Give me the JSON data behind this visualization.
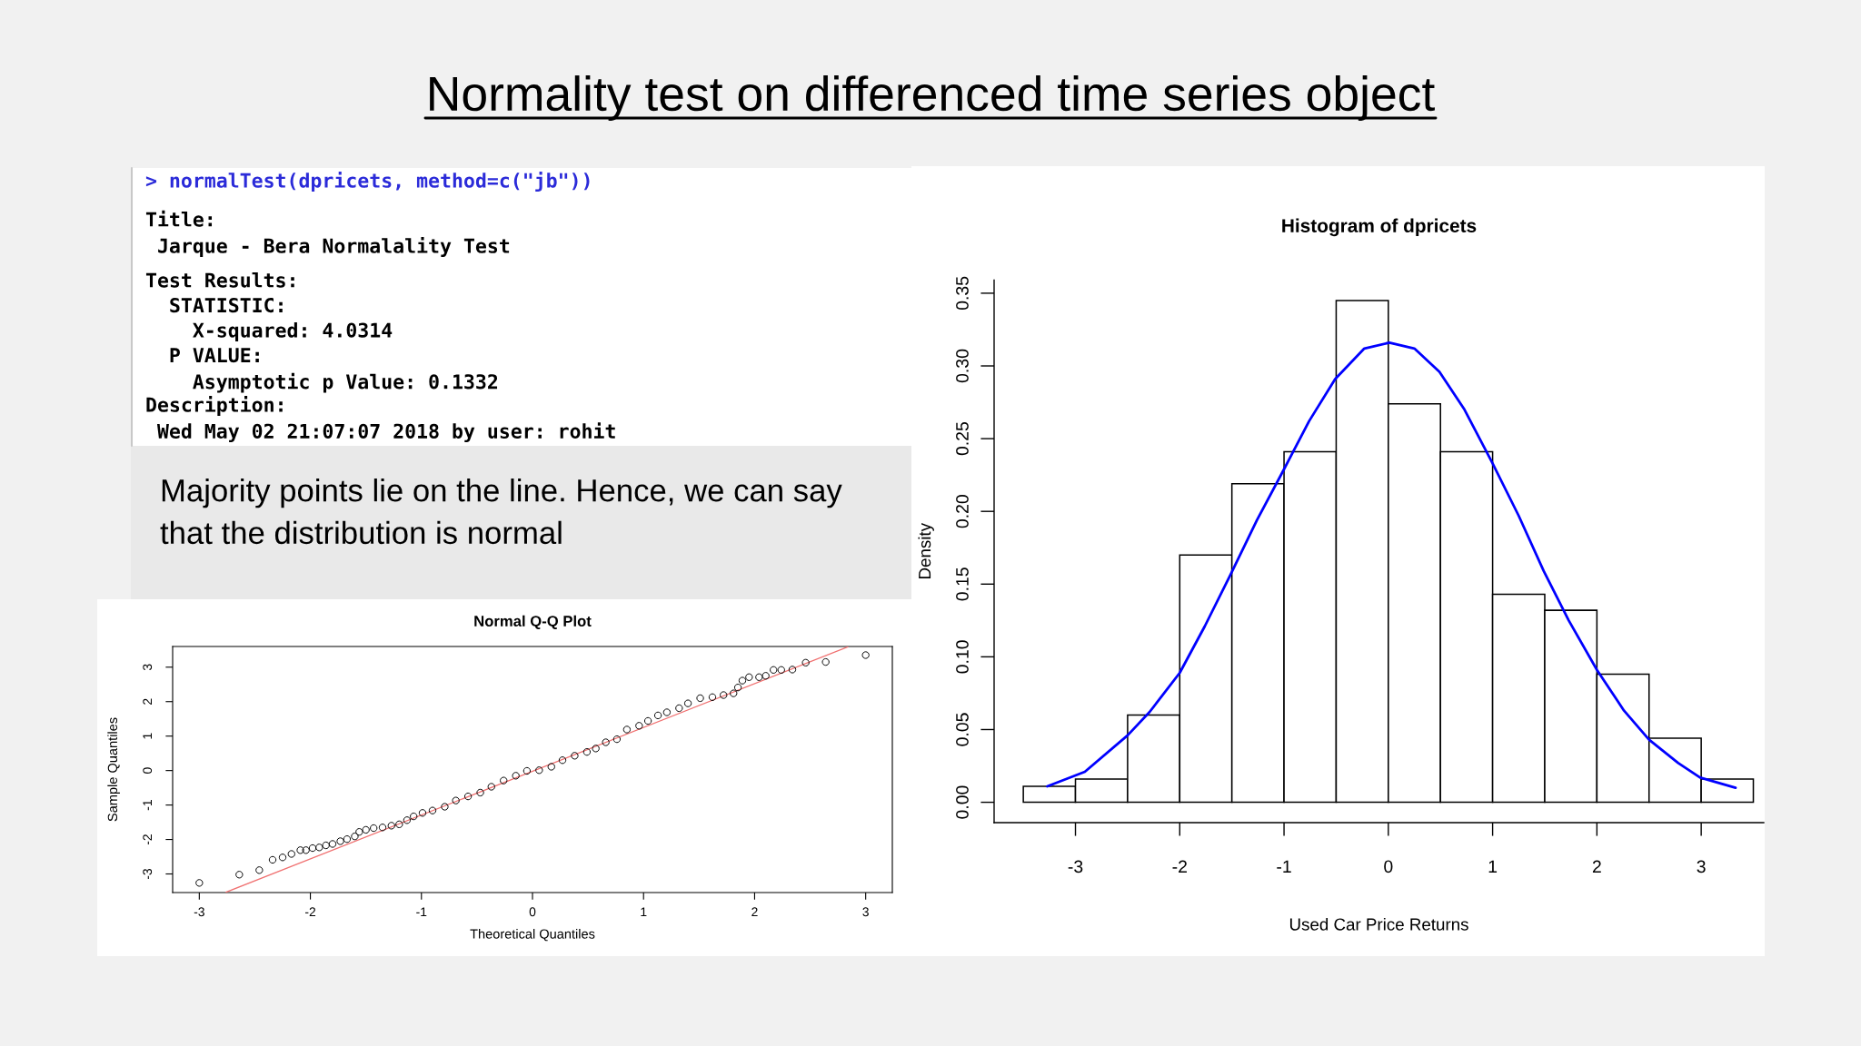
{
  "chart_data": [
    {
      "type": "other",
      "title": "Normality test on differenced time series object",
      "annotations": [
        "> normalTest(dpricets, method=c(\"jb\"))",
        "Title:\n Jarque - Bera Normalality Test",
        "Test Results:\n  STATISTIC:\n    X-squared: 4.0314\n  P VALUE:\n    Asymptotic p Value: 0.1332",
        "Description:\n Wed May 02 21:07:07 2018 by user: rohit"
      ]
    },
    {
      "type": "other",
      "annotations": [
        "Majority points lie on the line. Hence, we can say\nthat the distribution is normal"
      ]
    },
    {
      "type": "scatter",
      "title": "Normal Q-Q Plot",
      "xlabel": "Theoretical Quantiles",
      "ylabel": "Sample Quantiles",
      "xlim": [
        -3.24,
        3.24
      ],
      "ylim": [
        -3.54,
        3.6
      ],
      "xticks": [
        -3,
        -2,
        -1,
        0,
        1,
        2,
        3
      ],
      "yticks": [
        -3,
        -2,
        -1,
        0,
        1,
        2,
        3
      ],
      "series": [
        {
          "color": "#000000",
          "marker": "circle",
          "x": [
            -3.0,
            -2.64,
            -2.46,
            -2.34,
            -2.25,
            -2.17,
            -2.09,
            -2.04,
            -1.98,
            -1.92,
            -1.86,
            -1.8,
            -1.73,
            -1.67,
            -1.6,
            -1.56,
            -1.5,
            -1.43,
            -1.35,
            -1.27,
            -1.2,
            -1.13,
            -1.07,
            -0.99,
            -0.9,
            -0.79,
            -0.69,
            -0.58,
            -0.47,
            -0.37,
            -0.26,
            -0.15,
            -0.05,
            0.06,
            0.17,
            0.27,
            0.38,
            0.49,
            0.57,
            0.66,
            0.76,
            0.85,
            0.96,
            1.04,
            1.13,
            1.21,
            1.32,
            1.4,
            1.51,
            1.62,
            1.72,
            1.81,
            1.85,
            1.89,
            1.95,
            2.04,
            2.1,
            2.17,
            2.24,
            2.34,
            2.46,
            2.64,
            3.0
          ],
          "values": [
            -3.26,
            -3.02,
            -2.89,
            -2.59,
            -2.52,
            -2.42,
            -2.31,
            -2.31,
            -2.25,
            -2.23,
            -2.17,
            -2.13,
            -2.05,
            -1.99,
            -1.91,
            -1.78,
            -1.72,
            -1.67,
            -1.65,
            -1.6,
            -1.56,
            -1.44,
            -1.33,
            -1.23,
            -1.16,
            -1.05,
            -0.87,
            -0.75,
            -0.64,
            -0.47,
            -0.29,
            -0.15,
            -0.01,
            0.01,
            0.11,
            0.3,
            0.43,
            0.54,
            0.64,
            0.82,
            0.91,
            1.19,
            1.3,
            1.44,
            1.6,
            1.69,
            1.81,
            1.95,
            2.1,
            2.13,
            2.19,
            2.24,
            2.41,
            2.61,
            2.71,
            2.71,
            2.75,
            2.92,
            2.92,
            2.93,
            3.13,
            3.15,
            3.35
          ]
        },
        {
          "type": "line",
          "color": "#f07070",
          "x": [
            -2.76,
            2.84
          ],
          "values": [
            -3.53,
            3.59
          ]
        }
      ]
    },
    {
      "type": "histogram",
      "title": "Histogram of dpricets",
      "xlabel": "Used Car Price Returns",
      "ylabel": "Density",
      "xlim": [
        -3.78,
        3.6
      ],
      "ylim": [
        -0.014,
        0.359
      ],
      "xticks": [
        -3,
        -2,
        -1,
        0,
        1,
        2,
        3
      ],
      "yticks": [
        {
          "value": 0,
          "label": "0.00"
        },
        {
          "value": 0.05,
          "label": "0.05"
        },
        {
          "value": 0.1,
          "label": "0.10"
        },
        {
          "value": 0.15,
          "label": "0.15"
        },
        {
          "value": 0.2,
          "label": "0.20"
        },
        {
          "value": 0.25,
          "label": "0.25"
        },
        {
          "value": 0.3,
          "label": "0.30"
        },
        {
          "value": 0.35,
          "label": "0.35"
        }
      ],
      "bins": [
        -3.5,
        -3,
        -2.5,
        -2,
        -1.5,
        -1,
        -0.5,
        0,
        0.5,
        1,
        1.5,
        2,
        2.5,
        3,
        3.5
      ],
      "series": [
        {
          "type": "histogram",
          "color": "#ffffff",
          "values": [
            0.011,
            0.016,
            0.06,
            0.17,
            0.219,
            0.241,
            0.345,
            0.274,
            0.241,
            0.143,
            0.132,
            0.088,
            0.044,
            0.016
          ]
        },
        {
          "type": "line",
          "color": "#0000ff",
          "x": [
            -3.27,
            -2.91,
            -2.5,
            -2.29,
            -2.0,
            -1.76,
            -1.51,
            -1.26,
            -1.0,
            -0.76,
            -0.51,
            -0.23,
            0.01,
            0.25,
            0.49,
            0.73,
            1.0,
            1.25,
            1.49,
            1.73,
            2.0,
            2.26,
            2.5,
            2.78,
            2.99,
            3.33
          ],
          "values": [
            0.011,
            0.021,
            0.046,
            0.062,
            0.089,
            0.121,
            0.157,
            0.194,
            0.229,
            0.262,
            0.291,
            0.312,
            0.316,
            0.312,
            0.296,
            0.27,
            0.233,
            0.197,
            0.159,
            0.125,
            0.091,
            0.063,
            0.043,
            0.027,
            0.017,
            0.01
          ]
        }
      ]
    }
  ]
}
